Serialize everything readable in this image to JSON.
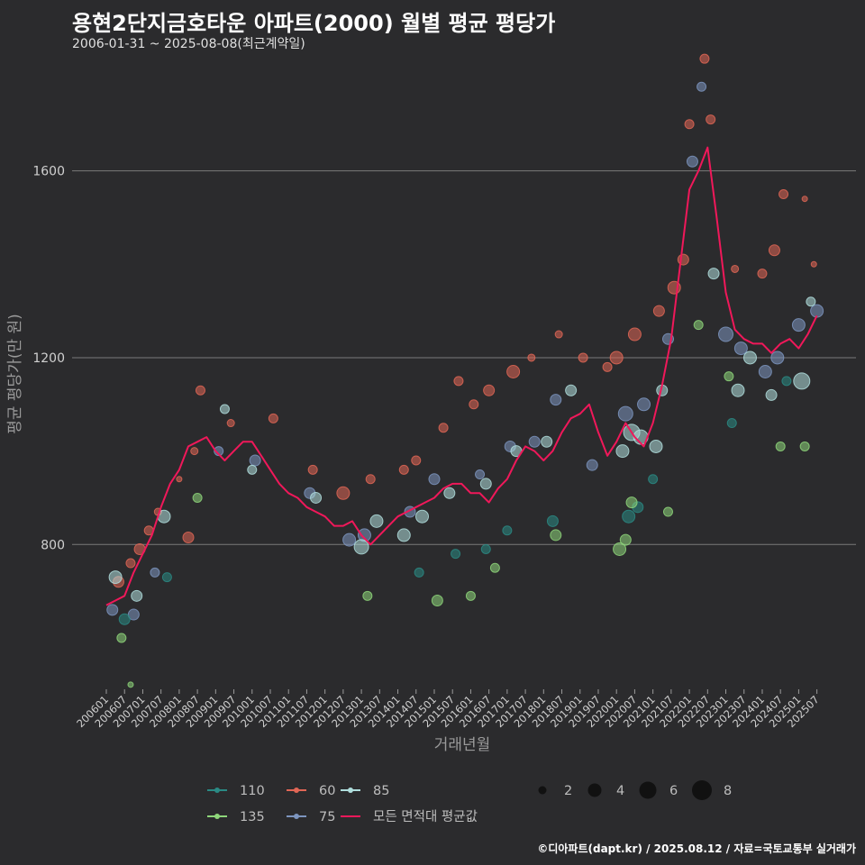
{
  "title": "용현2단지금호타운 아파트(2000) 월별 평균 평당가",
  "subtitle": "2006-01-31 ~ 2025-08-08(최근계약일)",
  "caption": "©디아파트(dapt.kr) / 2025.08.12 / 자료=국토교통부 실거래가",
  "colors": {
    "background": "#2b2b2d",
    "grid": "#7a7a7a",
    "110": "#2a8a84",
    "135": "#8ed67a",
    "60": "#e06655",
    "75": "#7d95bf",
    "85": "#b0dedd",
    "avg_line": "#f0185a"
  },
  "chart_data": {
    "type": "scatter",
    "title": "용현2단지금호타운 아파트(2000) 월별 평균 평당가",
    "xlabel": "거래년월",
    "ylabel": "평균 평당가(만 원)",
    "xlim": [
      "2006-01",
      "2025-08"
    ],
    "ylim": [
      490,
      1850
    ],
    "yticks": [
      800,
      1200,
      1600
    ],
    "xticks": [
      "200601",
      "200607",
      "200701",
      "200707",
      "200801",
      "200807",
      "200901",
      "200907",
      "201001",
      "201007",
      "201101",
      "201107",
      "201201",
      "201207",
      "201301",
      "201307",
      "201401",
      "201407",
      "201501",
      "201507",
      "201601",
      "201607",
      "201701",
      "201707",
      "201801",
      "201807",
      "201901",
      "201907",
      "202001",
      "202007",
      "202101",
      "202107",
      "202201",
      "202207",
      "202301",
      "202307",
      "202401",
      "202407",
      "202501",
      "202507"
    ],
    "grid": "horizontal",
    "legend_position": "bottom",
    "legend_series": [
      "110",
      "135",
      "60",
      "75",
      "85",
      "모든 면적대 평균값"
    ],
    "legend_sizes": [
      2,
      4,
      6,
      8
    ],
    "average_line": {
      "name": "모든 면적대 평균값",
      "x": [
        "2006-01",
        "2006-04",
        "2006-07",
        "2006-10",
        "2007-01",
        "2007-04",
        "2007-07",
        "2007-10",
        "2008-01",
        "2008-04",
        "2008-07",
        "2008-10",
        "2009-01",
        "2009-04",
        "2009-07",
        "2009-10",
        "2010-01",
        "2010-04",
        "2010-07",
        "2010-10",
        "2011-01",
        "2011-04",
        "2011-07",
        "2011-10",
        "2012-01",
        "2012-04",
        "2012-07",
        "2012-10",
        "2013-01",
        "2013-04",
        "2013-07",
        "2013-10",
        "2014-01",
        "2014-04",
        "2014-07",
        "2014-10",
        "2015-01",
        "2015-04",
        "2015-07",
        "2015-10",
        "2016-01",
        "2016-04",
        "2016-07",
        "2016-10",
        "2017-01",
        "2017-04",
        "2017-07",
        "2017-10",
        "2018-01",
        "2018-04",
        "2018-07",
        "2018-10",
        "2019-01",
        "2019-04",
        "2019-07",
        "2019-10",
        "2020-01",
        "2020-04",
        "2020-07",
        "2020-10",
        "2021-01",
        "2021-04",
        "2021-07",
        "2021-10",
        "2022-01",
        "2022-04",
        "2022-07",
        "2022-10",
        "2023-01",
        "2023-04",
        "2023-07",
        "2023-10",
        "2024-01",
        "2024-04",
        "2024-07",
        "2024-10",
        "2025-01",
        "2025-04",
        "2025-07"
      ],
      "y": [
        670,
        680,
        690,
        740,
        780,
        820,
        880,
        930,
        960,
        1010,
        1020,
        1030,
        1000,
        980,
        1000,
        1020,
        1020,
        990,
        960,
        930,
        910,
        900,
        880,
        870,
        860,
        840,
        840,
        850,
        820,
        800,
        820,
        840,
        860,
        870,
        880,
        890,
        900,
        920,
        930,
        930,
        910,
        910,
        890,
        920,
        940,
        980,
        1010,
        1000,
        980,
        1000,
        1040,
        1070,
        1080,
        1100,
        1040,
        990,
        1020,
        1060,
        1030,
        1010,
        1060,
        1140,
        1240,
        1400,
        1560,
        1600,
        1650,
        1500,
        1340,
        1260,
        1240,
        1230,
        1230,
        1210,
        1230,
        1240,
        1220,
        1250,
        1290
      ]
    },
    "points": [
      {
        "s": "60",
        "x": "2006-05",
        "y": 720,
        "r": 6
      },
      {
        "s": "60",
        "x": "2006-09",
        "y": 760,
        "r": 5
      },
      {
        "s": "60",
        "x": "2006-12",
        "y": 790,
        "r": 6
      },
      {
        "s": "60",
        "x": "2007-03",
        "y": 830,
        "r": 5
      },
      {
        "s": "60",
        "x": "2007-06",
        "y": 870,
        "r": 4
      },
      {
        "s": "60",
        "x": "2008-01",
        "y": 940,
        "r": 3
      },
      {
        "s": "60",
        "x": "2008-04",
        "y": 815,
        "r": 6
      },
      {
        "s": "60",
        "x": "2008-06",
        "y": 1000,
        "r": 4
      },
      {
        "s": "60",
        "x": "2008-08",
        "y": 1130,
        "r": 5
      },
      {
        "s": "60",
        "x": "2009-06",
        "y": 1060,
        "r": 4
      },
      {
        "s": "60",
        "x": "2010-08",
        "y": 1070,
        "r": 5
      },
      {
        "s": "60",
        "x": "2011-09",
        "y": 960,
        "r": 5
      },
      {
        "s": "60",
        "x": "2012-07",
        "y": 910,
        "r": 7
      },
      {
        "s": "60",
        "x": "2013-04",
        "y": 940,
        "r": 5
      },
      {
        "s": "60",
        "x": "2014-03",
        "y": 960,
        "r": 5
      },
      {
        "s": "60",
        "x": "2014-07",
        "y": 980,
        "r": 5
      },
      {
        "s": "60",
        "x": "2015-04",
        "y": 1050,
        "r": 5
      },
      {
        "s": "60",
        "x": "2015-09",
        "y": 1150,
        "r": 5
      },
      {
        "s": "60",
        "x": "2016-02",
        "y": 1100,
        "r": 5
      },
      {
        "s": "60",
        "x": "2016-07",
        "y": 1130,
        "r": 6
      },
      {
        "s": "60",
        "x": "2017-03",
        "y": 1170,
        "r": 7
      },
      {
        "s": "60",
        "x": "2017-09",
        "y": 1200,
        "r": 4
      },
      {
        "s": "60",
        "x": "2018-06",
        "y": 1250,
        "r": 4
      },
      {
        "s": "60",
        "x": "2019-02",
        "y": 1200,
        "r": 5
      },
      {
        "s": "60",
        "x": "2019-10",
        "y": 1180,
        "r": 5
      },
      {
        "s": "60",
        "x": "2020-01",
        "y": 1200,
        "r": 7
      },
      {
        "s": "60",
        "x": "2020-07",
        "y": 1250,
        "r": 7
      },
      {
        "s": "60",
        "x": "2021-03",
        "y": 1300,
        "r": 6
      },
      {
        "s": "60",
        "x": "2021-08",
        "y": 1350,
        "r": 7
      },
      {
        "s": "60",
        "x": "2021-11",
        "y": 1410,
        "r": 6
      },
      {
        "s": "60",
        "x": "2022-01",
        "y": 1700,
        "r": 5
      },
      {
        "s": "60",
        "x": "2022-06",
        "y": 1840,
        "r": 5
      },
      {
        "s": "60",
        "x": "2022-08",
        "y": 1710,
        "r": 5
      },
      {
        "s": "60",
        "x": "2023-04",
        "y": 1390,
        "r": 4
      },
      {
        "s": "60",
        "x": "2024-01",
        "y": 1380,
        "r": 5
      },
      {
        "s": "60",
        "x": "2024-05",
        "y": 1430,
        "r": 6
      },
      {
        "s": "60",
        "x": "2024-08",
        "y": 1550,
        "r": 5
      },
      {
        "s": "60",
        "x": "2025-03",
        "y": 1540,
        "r": 3
      },
      {
        "s": "60",
        "x": "2025-06",
        "y": 1400,
        "r": 3
      },
      {
        "s": "75",
        "x": "2006-03",
        "y": 660,
        "r": 6
      },
      {
        "s": "75",
        "x": "2006-10",
        "y": 650,
        "r": 6
      },
      {
        "s": "75",
        "x": "2007-05",
        "y": 740,
        "r": 5
      },
      {
        "s": "75",
        "x": "2009-02",
        "y": 1000,
        "r": 5
      },
      {
        "s": "75",
        "x": "2010-02",
        "y": 980,
        "r": 6
      },
      {
        "s": "75",
        "x": "2011-08",
        "y": 910,
        "r": 6
      },
      {
        "s": "75",
        "x": "2012-09",
        "y": 810,
        "r": 7
      },
      {
        "s": "75",
        "x": "2013-02",
        "y": 820,
        "r": 7
      },
      {
        "s": "75",
        "x": "2014-05",
        "y": 870,
        "r": 6
      },
      {
        "s": "75",
        "x": "2015-01",
        "y": 940,
        "r": 6
      },
      {
        "s": "75",
        "x": "2016-04",
        "y": 950,
        "r": 5
      },
      {
        "s": "75",
        "x": "2017-02",
        "y": 1010,
        "r": 6
      },
      {
        "s": "75",
        "x": "2017-10",
        "y": 1020,
        "r": 6
      },
      {
        "s": "75",
        "x": "2018-05",
        "y": 1110,
        "r": 6
      },
      {
        "s": "75",
        "x": "2019-05",
        "y": 970,
        "r": 6
      },
      {
        "s": "75",
        "x": "2020-04",
        "y": 1080,
        "r": 8
      },
      {
        "s": "75",
        "x": "2020-10",
        "y": 1100,
        "r": 7
      },
      {
        "s": "75",
        "x": "2021-06",
        "y": 1240,
        "r": 6
      },
      {
        "s": "75",
        "x": "2022-02",
        "y": 1620,
        "r": 6
      },
      {
        "s": "75",
        "x": "2022-05",
        "y": 1780,
        "r": 5
      },
      {
        "s": "75",
        "x": "2023-01",
        "y": 1250,
        "r": 8
      },
      {
        "s": "75",
        "x": "2023-06",
        "y": 1220,
        "r": 7
      },
      {
        "s": "75",
        "x": "2024-02",
        "y": 1170,
        "r": 7
      },
      {
        "s": "75",
        "x": "2024-06",
        "y": 1200,
        "r": 7
      },
      {
        "s": "75",
        "x": "2025-01",
        "y": 1270,
        "r": 7
      },
      {
        "s": "75",
        "x": "2025-07",
        "y": 1300,
        "r": 7
      },
      {
        "s": "85",
        "x": "2006-04",
        "y": 730,
        "r": 7
      },
      {
        "s": "85",
        "x": "2006-11",
        "y": 690,
        "r": 6
      },
      {
        "s": "85",
        "x": "2007-08",
        "y": 860,
        "r": 7
      },
      {
        "s": "85",
        "x": "2009-04",
        "y": 1090,
        "r": 5
      },
      {
        "s": "85",
        "x": "2010-01",
        "y": 960,
        "r": 5
      },
      {
        "s": "85",
        "x": "2011-10",
        "y": 900,
        "r": 6
      },
      {
        "s": "85",
        "x": "2013-01",
        "y": 795,
        "r": 8
      },
      {
        "s": "85",
        "x": "2013-06",
        "y": 850,
        "r": 7
      },
      {
        "s": "85",
        "x": "2014-03",
        "y": 820,
        "r": 7
      },
      {
        "s": "85",
        "x": "2014-09",
        "y": 860,
        "r": 7
      },
      {
        "s": "85",
        "x": "2015-06",
        "y": 910,
        "r": 6
      },
      {
        "s": "85",
        "x": "2016-06",
        "y": 930,
        "r": 6
      },
      {
        "s": "85",
        "x": "2017-04",
        "y": 1000,
        "r": 6
      },
      {
        "s": "85",
        "x": "2018-02",
        "y": 1020,
        "r": 6
      },
      {
        "s": "85",
        "x": "2018-10",
        "y": 1130,
        "r": 6
      },
      {
        "s": "85",
        "x": "2020-03",
        "y": 1000,
        "r": 7
      },
      {
        "s": "85",
        "x": "2020-06",
        "y": 1040,
        "r": 9
      },
      {
        "s": "85",
        "x": "2020-09",
        "y": 1030,
        "r": 8
      },
      {
        "s": "85",
        "x": "2021-02",
        "y": 1010,
        "r": 7
      },
      {
        "s": "85",
        "x": "2021-04",
        "y": 1130,
        "r": 6
      },
      {
        "s": "85",
        "x": "2022-09",
        "y": 1380,
        "r": 6
      },
      {
        "s": "85",
        "x": "2023-05",
        "y": 1130,
        "r": 7
      },
      {
        "s": "85",
        "x": "2023-09",
        "y": 1200,
        "r": 7
      },
      {
        "s": "85",
        "x": "2024-04",
        "y": 1120,
        "r": 6
      },
      {
        "s": "85",
        "x": "2025-02",
        "y": 1150,
        "r": 9
      },
      {
        "s": "85",
        "x": "2025-05",
        "y": 1320,
        "r": 5
      },
      {
        "s": "110",
        "x": "2006-07",
        "y": 640,
        "r": 6
      },
      {
        "s": "110",
        "x": "2007-09",
        "y": 730,
        "r": 5
      },
      {
        "s": "110",
        "x": "2014-08",
        "y": 740,
        "r": 5
      },
      {
        "s": "110",
        "x": "2015-08",
        "y": 780,
        "r": 5
      },
      {
        "s": "110",
        "x": "2016-06",
        "y": 790,
        "r": 5
      },
      {
        "s": "110",
        "x": "2017-01",
        "y": 830,
        "r": 5
      },
      {
        "s": "110",
        "x": "2018-04",
        "y": 850,
        "r": 6
      },
      {
        "s": "110",
        "x": "2020-05",
        "y": 860,
        "r": 7
      },
      {
        "s": "110",
        "x": "2020-08",
        "y": 880,
        "r": 6
      },
      {
        "s": "110",
        "x": "2021-01",
        "y": 940,
        "r": 5
      },
      {
        "s": "110",
        "x": "2023-03",
        "y": 1060,
        "r": 5
      },
      {
        "s": "110",
        "x": "2024-09",
        "y": 1150,
        "r": 5
      },
      {
        "s": "135",
        "x": "2006-06",
        "y": 600,
        "r": 5
      },
      {
        "s": "135",
        "x": "2006-09",
        "y": 500,
        "r": 3
      },
      {
        "s": "135",
        "x": "2008-07",
        "y": 900,
        "r": 5
      },
      {
        "s": "135",
        "x": "2013-03",
        "y": 690,
        "r": 5
      },
      {
        "s": "135",
        "x": "2015-02",
        "y": 680,
        "r": 6
      },
      {
        "s": "135",
        "x": "2016-01",
        "y": 690,
        "r": 5
      },
      {
        "s": "135",
        "x": "2016-09",
        "y": 750,
        "r": 5
      },
      {
        "s": "135",
        "x": "2018-05",
        "y": 820,
        "r": 6
      },
      {
        "s": "135",
        "x": "2020-02",
        "y": 790,
        "r": 7
      },
      {
        "s": "135",
        "x": "2020-04",
        "y": 810,
        "r": 6
      },
      {
        "s": "135",
        "x": "2020-06",
        "y": 890,
        "r": 6
      },
      {
        "s": "135",
        "x": "2021-06",
        "y": 870,
        "r": 5
      },
      {
        "s": "135",
        "x": "2022-04",
        "y": 1270,
        "r": 5
      },
      {
        "s": "135",
        "x": "2023-02",
        "y": 1160,
        "r": 5
      },
      {
        "s": "135",
        "x": "2024-07",
        "y": 1010,
        "r": 5
      },
      {
        "s": "135",
        "x": "2025-03",
        "y": 1010,
        "r": 5
      }
    ]
  }
}
